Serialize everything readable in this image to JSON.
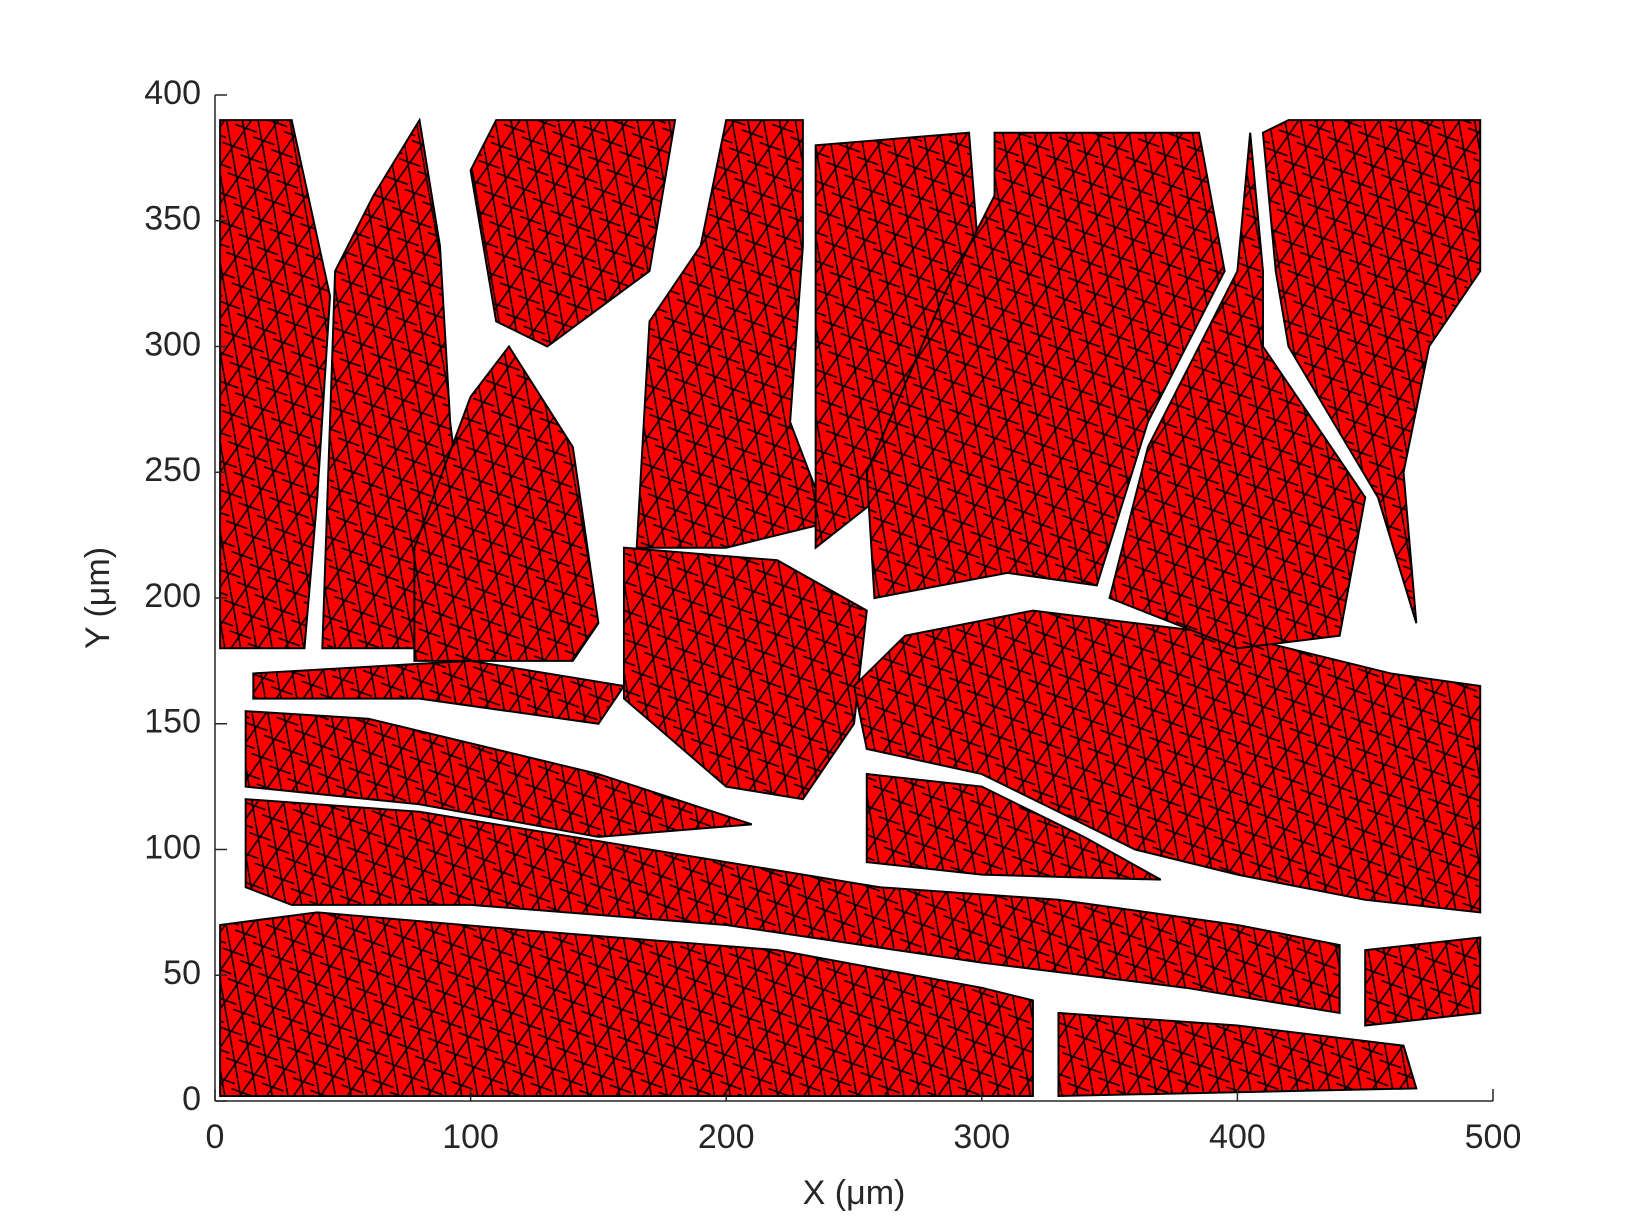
{
  "chart_data": {
    "type": "patch",
    "xlabel": "X (μm)",
    "ylabel": "Y (μm)",
    "xlim": [
      0,
      500
    ],
    "ylim": [
      0,
      400
    ],
    "xticks": [
      0,
      100,
      200,
      300,
      400,
      500
    ],
    "yticks": [
      0,
      50,
      100,
      150,
      200,
      250,
      300,
      350,
      400
    ],
    "color": "#ff0000",
    "edgecolor": "#000000",
    "regions": [
      {
        "x": [
          2,
          2,
          40,
          120,
          220,
          300,
          320,
          320
        ],
        "y": [
          2,
          70,
          75,
          68,
          60,
          45,
          40,
          2
        ]
      },
      {
        "x": [
          330,
          330,
          400,
          465,
          470
        ],
        "y": [
          2,
          35,
          30,
          22,
          5
        ]
      },
      {
        "x": [
          12,
          12,
          80,
          170,
          260,
          330,
          400,
          440,
          440,
          380,
          300,
          200,
          100,
          30
        ],
        "y": [
          85,
          120,
          115,
          100,
          85,
          80,
          70,
          62,
          35,
          45,
          55,
          70,
          78,
          78
        ]
      },
      {
        "x": [
          12,
          12,
          60,
          150,
          210,
          150,
          80
        ],
        "y": [
          125,
          155,
          152,
          130,
          110,
          105,
          118
        ]
      },
      {
        "x": [
          450,
          450,
          495,
          495
        ],
        "y": [
          30,
          60,
          65,
          35
        ]
      },
      {
        "x": [
          15,
          15,
          100,
          160,
          150,
          80
        ],
        "y": [
          160,
          170,
          175,
          165,
          150,
          160
        ]
      },
      {
        "x": [
          160,
          160,
          220,
          255,
          250,
          230,
          200
        ],
        "y": [
          160,
          220,
          215,
          195,
          150,
          120,
          125
        ]
      },
      {
        "x": [
          255,
          250,
          270,
          320,
          400,
          460,
          495,
          495,
          450,
          400,
          360,
          330,
          300
        ],
        "y": [
          140,
          165,
          185,
          195,
          185,
          170,
          165,
          75,
          80,
          90,
          100,
          115,
          130
        ]
      },
      {
        "x": [
          255,
          255,
          300,
          340,
          370,
          300
        ],
        "y": [
          95,
          130,
          125,
          105,
          88,
          90
        ]
      },
      {
        "x": [
          2,
          2,
          30,
          45,
          40,
          35
        ],
        "y": [
          180,
          390,
          390,
          320,
          240,
          180
        ]
      },
      {
        "x": [
          42,
          47,
          62,
          80,
          88,
          92,
          98,
          78
        ],
        "y": [
          180,
          330,
          360,
          390,
          340,
          270,
          220,
          180
        ]
      },
      {
        "x": [
          78,
          78,
          100,
          115,
          140,
          150,
          140
        ],
        "y": [
          175,
          220,
          280,
          300,
          260,
          190,
          175
        ]
      },
      {
        "x": [
          110,
          100,
          110,
          180,
          170,
          130
        ],
        "y": [
          310,
          370,
          390,
          390,
          330,
          300
        ]
      },
      {
        "x": [
          165,
          170,
          190,
          200,
          230,
          230,
          225,
          240,
          200
        ],
        "y": [
          220,
          310,
          340,
          390,
          390,
          340,
          270,
          230,
          220
        ]
      },
      {
        "x": [
          235,
          235,
          295,
          300,
          280,
          260
        ],
        "y": [
          220,
          380,
          385,
          320,
          260,
          240
        ]
      },
      {
        "x": [
          258,
          255,
          285,
          305,
          305,
          385,
          395,
          365,
          345,
          310
        ],
        "y": [
          200,
          250,
          320,
          360,
          385,
          385,
          330,
          270,
          205,
          210
        ]
      },
      {
        "x": [
          350,
          365,
          400,
          405,
          410,
          410,
          450,
          440,
          400
        ],
        "y": [
          200,
          260,
          330,
          385,
          330,
          300,
          240,
          185,
          180
        ]
      },
      {
        "x": [
          415,
          410,
          420,
          495,
          495,
          475,
          465,
          470,
          455,
          420
        ],
        "y": [
          330,
          385,
          390,
          390,
          330,
          300,
          250,
          190,
          240,
          300
        ]
      }
    ]
  }
}
